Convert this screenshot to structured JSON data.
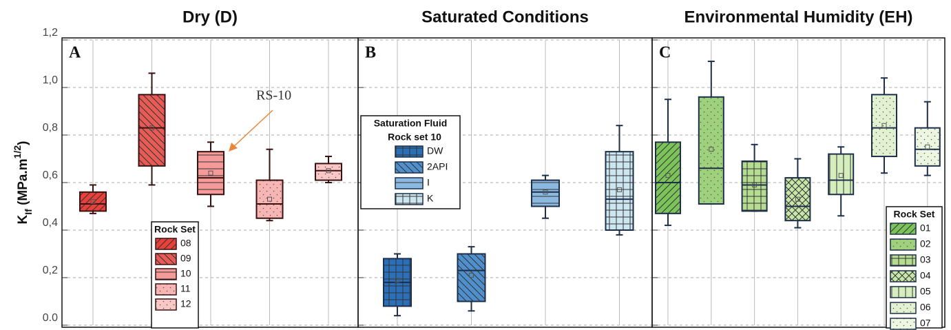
{
  "chart_data": [
    {
      "type": "box",
      "title": "Dry  (D)",
      "panel_label": "A",
      "legend_title": "Rock Set",
      "annotation": "RS-10",
      "y_label": {
        "main": "K",
        "sub": "If",
        "text": " (MPa.m",
        "sup": "1/2",
        "end": ")"
      },
      "ylim": [
        0,
        1.2
      ],
      "yticks": [
        {
          "value": 0,
          "label": "0.0"
        },
        {
          "value": 0.2,
          "label": "0,2"
        },
        {
          "value": 0.4,
          "label": "0,4"
        },
        {
          "value": 0.6,
          "label": "0,6"
        },
        {
          "value": 0.8,
          "label": "0,8"
        },
        {
          "value": 1.0,
          "label": "1,0"
        },
        {
          "value": 1.2,
          "label": "1,2"
        }
      ],
      "series": [
        {
          "name": "08",
          "color": "#e8403a",
          "hatch": "diag-up",
          "min": 0.47,
          "q1": 0.48,
          "median": 0.51,
          "q3": 0.56,
          "max": 0.59,
          "mean": 0.52
        },
        {
          "name": "09",
          "color": "#e85a55",
          "hatch": "diag-down",
          "min": 0.59,
          "q1": 0.67,
          "median": 0.83,
          "q3": 0.97,
          "max": 1.06,
          "mean": 0.83
        },
        {
          "name": "10",
          "color": "#f49a98",
          "hatch": "hlines",
          "min": 0.5,
          "q1": 0.55,
          "median": 0.62,
          "q3": 0.73,
          "max": 0.77,
          "mean": 0.64
        },
        {
          "name": "11",
          "color": "#f7b5b3",
          "hatch": "dots",
          "min": 0.44,
          "q1": 0.45,
          "median": 0.51,
          "q3": 0.61,
          "max": 0.74,
          "mean": 0.53
        },
        {
          "name": "12",
          "color": "#f9c8c6",
          "hatch": "dots",
          "min": 0.6,
          "q1": 0.61,
          "median": 0.65,
          "q3": 0.68,
          "max": 0.71,
          "mean": 0.65
        }
      ]
    },
    {
      "type": "box",
      "title": "Saturated Conditions",
      "panel_label": "B",
      "legend_title": "Saturation Fluid",
      "legend_subtitle": "Rock set 10",
      "ylim": [
        0,
        1.2
      ],
      "yticks": [
        {
          "value": 0,
          "label": "0.0"
        },
        {
          "value": 0.2,
          "label": "0,2"
        },
        {
          "value": 0.4,
          "label": "0,4"
        },
        {
          "value": 0.6,
          "label": "0,6"
        },
        {
          "value": 0.8,
          "label": "0,8"
        },
        {
          "value": 1.0,
          "label": "1,0"
        },
        {
          "value": 1.2,
          "label": "1,2"
        }
      ],
      "series": [
        {
          "name": "DW",
          "color": "#2a6fb8",
          "hatch": "grid",
          "min": 0.04,
          "q1": 0.08,
          "median": 0.18,
          "q3": 0.28,
          "max": 0.3,
          "mean": 0.19
        },
        {
          "name": "2API",
          "color": "#4f8fcc",
          "hatch": "diag-down",
          "min": 0.06,
          "q1": 0.1,
          "median": 0.23,
          "q3": 0.3,
          "max": 0.33,
          "mean": 0.21
        },
        {
          "name": "I",
          "color": "#8ab8de",
          "hatch": "hlines",
          "min": 0.45,
          "q1": 0.5,
          "median": 0.56,
          "q3": 0.61,
          "max": 0.63,
          "mean": 0.56
        },
        {
          "name": "K",
          "color": "#cce6f0",
          "hatch": "grid",
          "min": 0.38,
          "q1": 0.4,
          "median": 0.53,
          "q3": 0.73,
          "max": 0.84,
          "mean": 0.57
        }
      ]
    },
    {
      "type": "box",
      "title": "Environmental Humidity (EH)",
      "panel_label": "C",
      "legend_title": "Rock Set",
      "ylim": [
        0,
        1.2
      ],
      "yticks": [
        {
          "value": 0,
          "label": "0.0"
        },
        {
          "value": 0.2,
          "label": "0,2"
        },
        {
          "value": 0.4,
          "label": "0,4"
        },
        {
          "value": 0.6,
          "label": "0,6"
        },
        {
          "value": 0.8,
          "label": "0,8"
        },
        {
          "value": 1.0,
          "label": "1,0"
        },
        {
          "value": 1.2,
          "label": "1,2"
        }
      ],
      "series": [
        {
          "name": "01",
          "color": "#7cc35a",
          "hatch": "diag-up",
          "min": 0.42,
          "q1": 0.47,
          "median": 0.6,
          "q3": 0.77,
          "max": 0.95,
          "mean": 0.63
        },
        {
          "name": "02",
          "color": "#9fd17c",
          "hatch": "dots",
          "min": 0.51,
          "q1": 0.51,
          "median": 0.66,
          "q3": 0.96,
          "max": 1.11,
          "mean": 0.74
        },
        {
          "name": "03",
          "color": "#b5dc90",
          "hatch": "grid",
          "min": 0.48,
          "q1": 0.48,
          "median": 0.59,
          "q3": 0.69,
          "max": 0.76,
          "mean": 0.59
        },
        {
          "name": "04",
          "color": "#c8e6a8",
          "hatch": "cross",
          "min": 0.41,
          "q1": 0.44,
          "median": 0.5,
          "q3": 0.62,
          "max": 0.7,
          "mean": 0.53
        },
        {
          "name": "05",
          "color": "#d6edbe",
          "hatch": "vlines",
          "min": 0.46,
          "q1": 0.55,
          "median": 0.61,
          "q3": 0.72,
          "max": 0.75,
          "mean": 0.63
        },
        {
          "name": "06",
          "color": "#e2f2d0",
          "hatch": "dots",
          "min": 0.64,
          "q1": 0.71,
          "median": 0.83,
          "q3": 0.97,
          "max": 1.04,
          "mean": 0.84
        },
        {
          "name": "07",
          "color": "#ecf6e0",
          "hatch": "dots",
          "min": 0.63,
          "q1": 0.67,
          "median": 0.74,
          "q3": 0.83,
          "max": 0.94,
          "mean": 0.75
        }
      ]
    }
  ]
}
